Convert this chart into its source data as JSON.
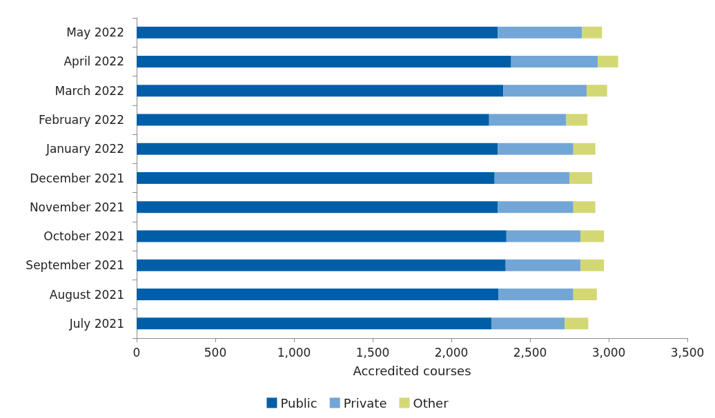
{
  "chart_data": {
    "type": "bar",
    "orientation": "horizontal",
    "stacked": true,
    "xlabel": "Accredited courses",
    "categories": [
      "May 2022",
      "April 2022",
      "March 2022",
      "February 2022",
      "January 2022",
      "December 2021",
      "November 2021",
      "October 2021",
      "September 2021",
      "August 2021",
      "July 2021"
    ],
    "series": [
      {
        "name": "Public",
        "color": "#005ea8",
        "values": [
          2295,
          2380,
          2330,
          2240,
          2295,
          2275,
          2295,
          2350,
          2345,
          2300,
          2255
        ]
      },
      {
        "name": "Private",
        "color": "#72a6d6",
        "values": [
          536,
          550,
          530,
          490,
          480,
          475,
          480,
          470,
          475,
          475,
          465
        ]
      },
      {
        "name": "Other",
        "color": "#d4d874",
        "values": [
          126,
          130,
          130,
          135,
          140,
          145,
          140,
          150,
          150,
          150,
          150
        ]
      }
    ],
    "xlim": [
      0,
      3500
    ],
    "xticks": [
      {
        "value": 0,
        "label": "0"
      },
      {
        "value": 500,
        "label": "500"
      },
      {
        "value": 1000,
        "label": "1,000"
      },
      {
        "value": 1500,
        "label": "1,500"
      },
      {
        "value": 2000,
        "label": "2,000"
      },
      {
        "value": 2500,
        "label": "2,500"
      },
      {
        "value": 3000,
        "label": "3,000"
      },
      {
        "value": 3500,
        "label": "3,500"
      }
    ],
    "grid": false,
    "legend": "bottom"
  }
}
